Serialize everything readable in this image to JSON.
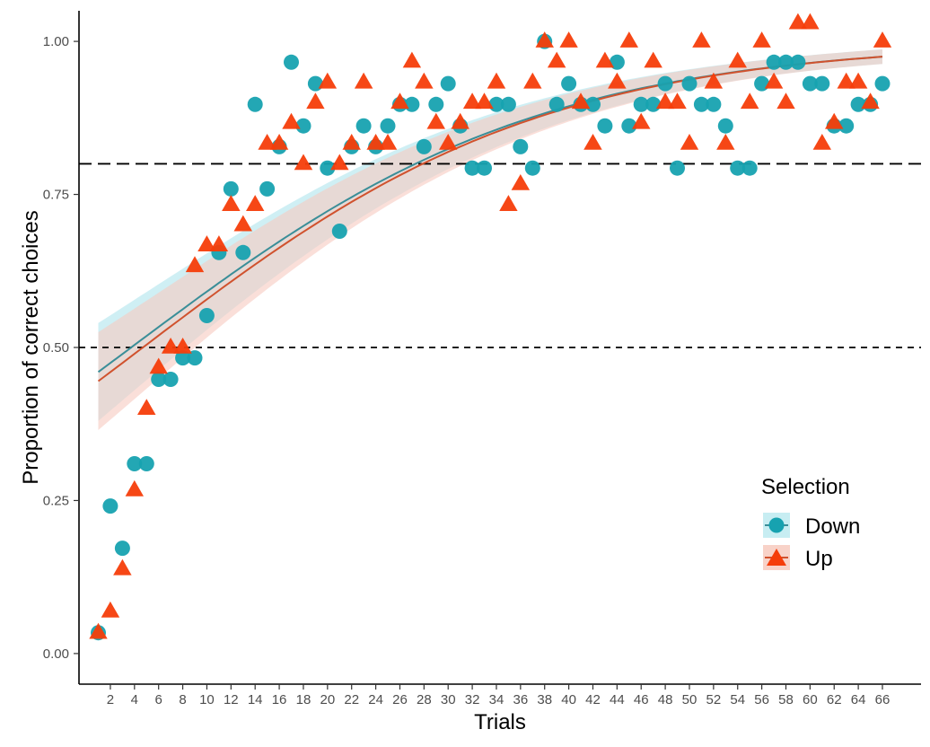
{
  "chart_data": {
    "type": "scatter",
    "title": "",
    "xlabel": "Trials",
    "ylabel": "Proportion of correct choices",
    "xlim": [
      -0.6,
      69.2
    ],
    "ylim": [
      -0.05,
      1.05
    ],
    "x_ticks": [
      2,
      4,
      6,
      8,
      10,
      12,
      14,
      16,
      18,
      20,
      22,
      24,
      26,
      28,
      30,
      32,
      34,
      36,
      38,
      40,
      42,
      44,
      46,
      48,
      50,
      52,
      54,
      56,
      58,
      60,
      62,
      64,
      66
    ],
    "y_ticks": [
      0.0,
      0.25,
      0.5,
      0.75,
      1.0
    ],
    "y_tick_labels": [
      "0.00",
      "0.25",
      "0.50",
      "0.75",
      "1.00"
    ],
    "grid": false,
    "legend": {
      "title": "Selection",
      "placement": "right"
    },
    "reference_lines": [
      {
        "y": 0.8,
        "style": "long-dash"
      },
      {
        "y": 0.5,
        "style": "short-dash"
      }
    ],
    "series": [
      {
        "name": "Down",
        "marker": "circle",
        "color": "#17A2B0",
        "fit_color": "#3A8E98",
        "band_color": "#BFEAF0",
        "fit_start": 0.46,
        "fit_end": 0.975,
        "values": [
          0.034,
          0.241,
          0.172,
          0.31,
          0.31,
          0.448,
          0.448,
          0.483,
          0.483,
          0.552,
          0.655,
          0.759,
          0.655,
          0.897,
          0.759,
          0.828,
          0.966,
          0.862,
          0.931,
          0.793,
          0.69,
          0.828,
          0.862,
          0.828,
          0.862,
          0.897,
          0.897,
          0.828,
          0.897,
          0.931,
          0.862,
          0.793,
          0.793,
          0.897,
          0.897,
          0.828,
          0.793,
          1.0,
          0.897,
          0.931,
          0.897,
          0.897,
          0.862,
          0.966,
          0.862,
          0.897,
          0.897,
          0.931,
          0.793,
          0.931,
          0.897,
          0.897,
          0.862,
          0.793,
          0.793,
          0.931,
          0.966,
          0.966,
          0.966,
          0.931,
          0.931,
          0.862,
          0.862,
          0.897,
          0.897,
          0.931
        ]
      },
      {
        "name": "Up",
        "marker": "triangle",
        "color": "#F53D0A",
        "fit_color": "#D0522E",
        "band_color": "#F6C9BF",
        "fit_start": 0.445,
        "fit_end": 0.975,
        "values": [
          0.034,
          0.069,
          0.138,
          0.267,
          0.4,
          0.467,
          0.5,
          0.5,
          0.633,
          0.667,
          0.667,
          0.733,
          0.7,
          0.733,
          0.833,
          0.833,
          0.867,
          0.8,
          0.9,
          0.933,
          0.8,
          0.833,
          0.933,
          0.833,
          0.833,
          0.9,
          0.967,
          0.933,
          0.867,
          0.833,
          0.867,
          0.9,
          0.9,
          0.933,
          0.733,
          0.767,
          0.933,
          1.0,
          0.967,
          1.0,
          0.9,
          0.833,
          0.967,
          0.933,
          1.0,
          0.867,
          0.967,
          0.9,
          0.9,
          0.833,
          1.0,
          0.933,
          0.833,
          0.967,
          0.9,
          1.0,
          0.933,
          0.9,
          1.03,
          1.03,
          0.833,
          0.867,
          0.933,
          0.933,
          0.9,
          1.0
        ]
      }
    ]
  }
}
